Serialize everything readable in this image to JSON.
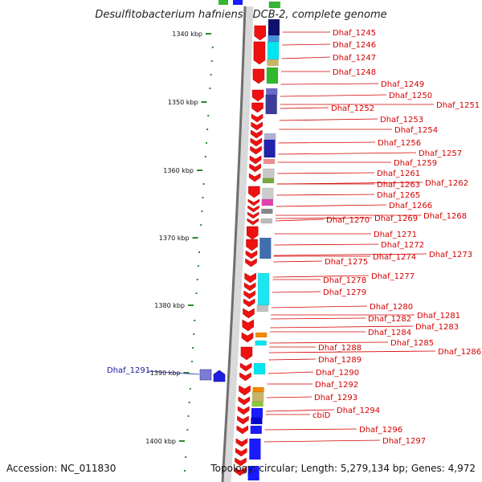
{
  "title": "Desulfitobacterium hafniense DCB-2, complete genome",
  "footer": {
    "accession": "Accession: NC_011830",
    "topology": "Topology: circular; Length: 5,279,134 bp; Genes: 4,972"
  },
  "scale_labels": [
    "1340 kbp",
    "1350 kbp",
    "1360 kbp",
    "1370 kbp",
    "1380 kbp",
    "1390 kbp",
    "1400 kbp"
  ],
  "outer_label": "Dhaf_1291",
  "gene_labels": [
    "Dhaf_1245",
    "Dhaf_1246",
    "Dhaf_1247",
    "Dhaf_1248",
    "Dhaf_1249",
    "Dhaf_1250",
    "Dhaf_1251",
    "Dhaf_1252",
    "Dhaf_1253",
    "Dhaf_1254",
    "Dhaf_1256",
    "Dhaf_1257",
    "Dhaf_1259",
    "Dhaf_1261",
    "Dhaf_1262",
    "Dhaf_1263",
    "Dhaf_1265",
    "Dhaf_1266",
    "Dhaf_1268",
    "Dhaf_1269",
    "Dhaf_1270",
    "Dhaf_1271",
    "Dhaf_1272",
    "Dhaf_1273",
    "Dhaf_1274",
    "Dhaf_1275",
    "Dhaf_1277",
    "Dhaf_1278",
    "Dhaf_1279",
    "Dhaf_1280",
    "Dhaf_1281",
    "Dhaf_1282",
    "Dhaf_1283",
    "Dhaf_1284",
    "Dhaf_1285",
    "Dhaf_1286",
    "Dhaf_1288",
    "Dhaf_1289",
    "Dhaf_1290",
    "Dhaf_1292",
    "Dhaf_1293",
    "Dhaf_1294",
    "cbiD",
    "Dhaf_1296",
    "Dhaf_1297"
  ]
}
